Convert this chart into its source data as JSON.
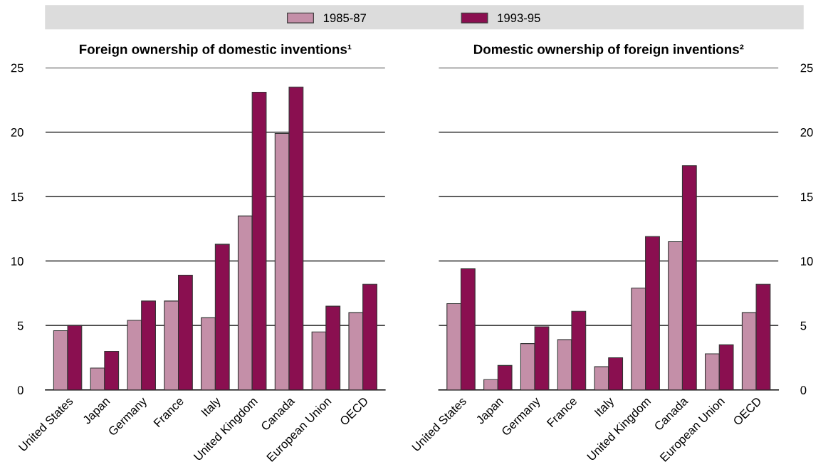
{
  "chart_data": [
    {
      "type": "bar",
      "title": "Foreign ownership of domestic inventions¹",
      "categories": [
        "United States",
        "Japan",
        "Germany",
        "France",
        "Italy",
        "United Kingdom",
        "Canada",
        "European Union",
        "OECD"
      ],
      "series": [
        {
          "name": "1985-87",
          "color": "#c48fa8",
          "values": [
            4.6,
            1.7,
            5.4,
            6.9,
            5.6,
            13.5,
            19.9,
            4.5,
            6.0
          ]
        },
        {
          "name": "1993-95",
          "color": "#8a0f50",
          "values": [
            5.0,
            3.0,
            6.9,
            8.9,
            11.3,
            23.1,
            23.5,
            6.5,
            8.2
          ]
        }
      ],
      "ylim": [
        0,
        25
      ],
      "yticks": [
        0,
        5,
        10,
        15,
        20,
        25
      ],
      "grid": "y",
      "legend": "top"
    },
    {
      "type": "bar",
      "title": "Domestic ownership of foreign inventions²",
      "categories": [
        "United States",
        "Japan",
        "Germany",
        "France",
        "Italy",
        "United Kingdom",
        "Canada",
        "European Union",
        "OECD"
      ],
      "series": [
        {
          "name": "1985-87",
          "color": "#c48fa8",
          "values": [
            6.7,
            0.8,
            3.6,
            3.9,
            1.8,
            7.9,
            11.5,
            2.8,
            6.0
          ]
        },
        {
          "name": "1993-95",
          "color": "#8a0f50",
          "values": [
            9.4,
            1.9,
            4.9,
            6.1,
            2.5,
            11.9,
            17.4,
            3.5,
            8.2
          ]
        }
      ],
      "ylim": [
        0,
        25
      ],
      "yticks": [
        0,
        5,
        10,
        15,
        20,
        25
      ],
      "grid": "y"
    }
  ]
}
